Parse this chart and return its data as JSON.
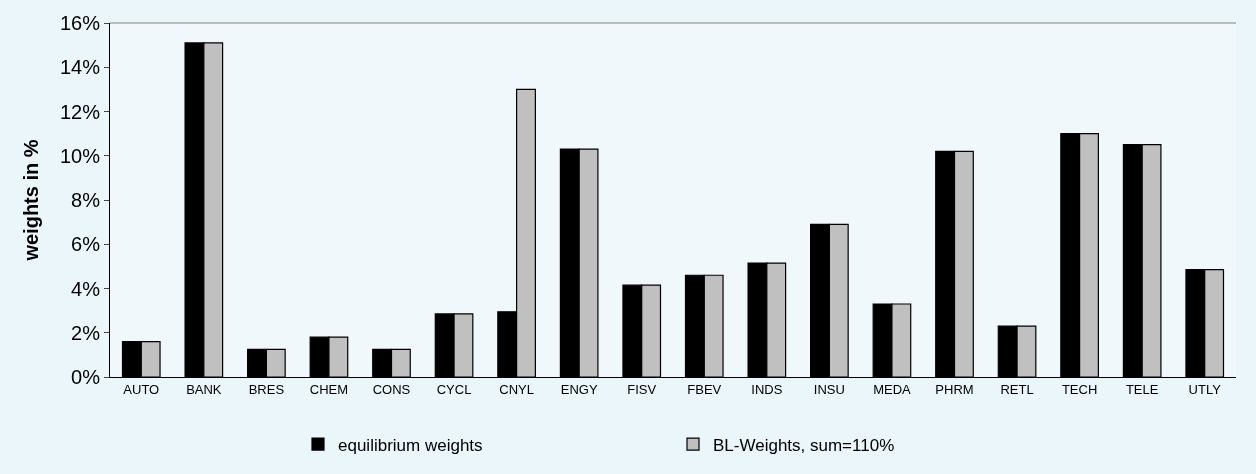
{
  "chart_data": {
    "type": "bar",
    "ylabel": "weights in %",
    "categories": [
      "AUTO",
      "BANK",
      "BRES",
      "CHEM",
      "CONS",
      "CYCL",
      "CNYL",
      "ENGY",
      "FISV",
      "FBEV",
      "INDS",
      "INSU",
      "MEDA",
      "PHRM",
      "RETL",
      "TECH",
      "TELE",
      "UTLY"
    ],
    "series": [
      {
        "name": "equilibrium weights",
        "color": "#000000",
        "values": [
          1.6,
          15.1,
          1.25,
          1.8,
          1.25,
          2.85,
          2.95,
          10.3,
          4.15,
          4.6,
          5.15,
          6.9,
          3.3,
          10.2,
          2.3,
          11.0,
          10.5,
          4.85
        ]
      },
      {
        "name": "BL-Weights, sum=110%",
        "color": "#c0c0c0",
        "values": [
          1.6,
          15.1,
          1.25,
          1.8,
          1.25,
          2.85,
          13.0,
          10.3,
          4.15,
          4.6,
          5.15,
          6.9,
          3.3,
          10.2,
          2.3,
          11.0,
          10.5,
          4.85
        ]
      }
    ],
    "ylim": [
      0,
      16
    ],
    "yticks": [
      {
        "value": 0,
        "label": "0%"
      },
      {
        "value": 2,
        "label": "2%"
      },
      {
        "value": 4,
        "label": "4%"
      },
      {
        "value": 6,
        "label": "6%"
      },
      {
        "value": 8,
        "label": "8%"
      },
      {
        "value": 10,
        "label": "10%"
      },
      {
        "value": 12,
        "label": "12%"
      },
      {
        "value": 14,
        "label": "14%"
      },
      {
        "value": 16,
        "label": "16%"
      }
    ],
    "legend": "bottom",
    "grid": false
  }
}
